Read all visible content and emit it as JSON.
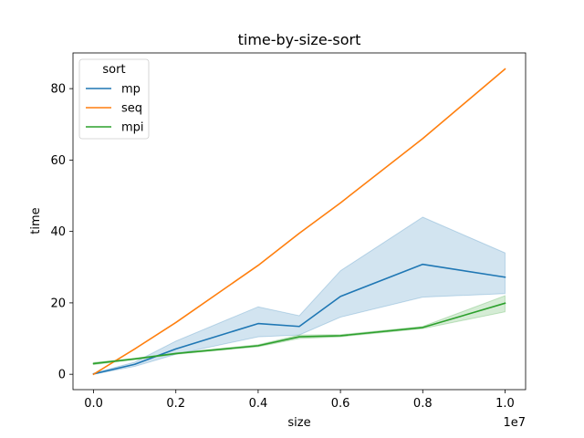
{
  "chart_data": {
    "type": "line",
    "title": "time-by-size-sort",
    "xlabel": "size",
    "ylabel": "time",
    "x_offset_label": "1e7",
    "xlim": [
      -500000,
      10500000
    ],
    "ylim": [
      -4.3,
      90
    ],
    "x_ticks": [
      0,
      2000000,
      4000000,
      6000000,
      8000000,
      10000000
    ],
    "x_tick_labels": [
      "0.0",
      "0.2",
      "0.4",
      "0.6",
      "0.8",
      "1.0"
    ],
    "y_ticks": [
      0,
      20,
      40,
      60,
      80
    ],
    "y_tick_labels": [
      "0",
      "20",
      "40",
      "60",
      "80"
    ],
    "grid": false,
    "legend": {
      "title": "sort",
      "placement": "upper-left",
      "entries": [
        "mp",
        "seq",
        "mpi"
      ]
    },
    "series": [
      {
        "name": "mp",
        "color": "#1f77b4",
        "x": [
          0,
          1000000,
          2000000,
          4000000,
          5000000,
          6000000,
          8000000,
          10000000
        ],
        "y": [
          0.1,
          2.8,
          7.1,
          14.2,
          13.4,
          21.8,
          30.8,
          27.2
        ],
        "ci_low": [
          0.0,
          2.2,
          5.6,
          10.5,
          11.0,
          16.0,
          21.6,
          22.6
        ],
        "ci_high": [
          0.3,
          3.4,
          9.3,
          18.9,
          16.4,
          29.0,
          44.0,
          34.0
        ]
      },
      {
        "name": "seq",
        "color": "#ff7f0e",
        "x": [
          0,
          1000000,
          2000000,
          4000000,
          5000000,
          6000000,
          8000000,
          10000000
        ],
        "y": [
          0,
          7.1,
          14.5,
          30.5,
          39.5,
          48.0,
          66.0,
          85.5
        ]
      },
      {
        "name": "mpi",
        "color": "#2ca02c",
        "x": [
          0,
          1000000,
          2000000,
          4000000,
          5000000,
          6000000,
          8000000,
          10000000
        ],
        "y": [
          3.0,
          4.3,
          5.8,
          8.0,
          10.5,
          10.8,
          13.1,
          19.9
        ],
        "ci_low": [
          2.7,
          4.1,
          5.6,
          7.7,
          10.0,
          10.5,
          12.8,
          17.5
        ],
        "ci_high": [
          3.3,
          4.5,
          6.0,
          8.3,
          11.0,
          11.1,
          13.4,
          22.0
        ]
      }
    ]
  }
}
